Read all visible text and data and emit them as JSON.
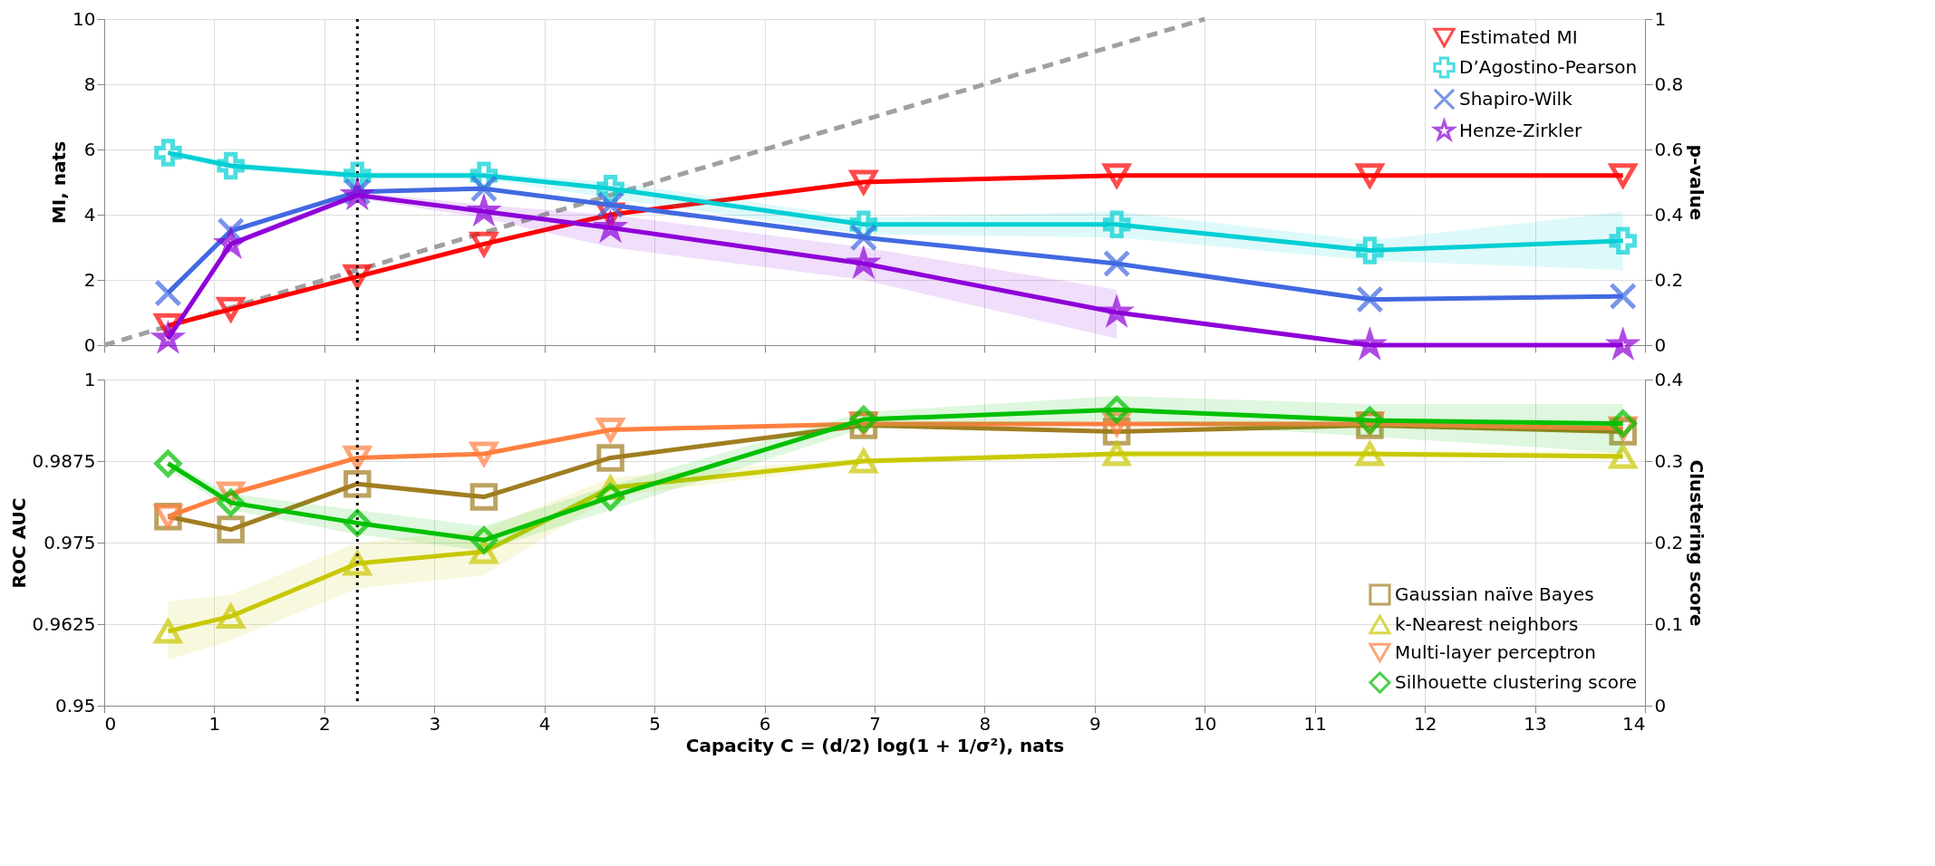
{
  "chart_data": [
    {
      "type": "line",
      "ylabel": "MI, nats",
      "y2label": "p-value",
      "xlim": [
        0,
        14
      ],
      "xticks": [
        0,
        1,
        2,
        3,
        4,
        5,
        6,
        7,
        8,
        9,
        10,
        11,
        12,
        13,
        14
      ],
      "ylim": [
        0,
        10
      ],
      "yticks": [
        0,
        2,
        4,
        6,
        8,
        10
      ],
      "y2lim": [
        0,
        1
      ],
      "y2ticks": [
        0,
        0.2,
        0.4,
        0.6,
        0.8,
        1
      ],
      "grid": true,
      "legend": "top right",
      "tick_labels": "y",
      "x": [
        0.58,
        1.15,
        2.3,
        3.45,
        4.6,
        6.9,
        9.2,
        11.5,
        13.8
      ],
      "series": [
        {
          "type": "line",
          "x": [
            0,
            10
          ],
          "values": [
            0,
            10
          ],
          "color": "#a0a0a0",
          "line_style": "dashed",
          "marker": "none"
        },
        {
          "name": "Estimated MI",
          "color": "#ff0000",
          "marker": "triangle-down",
          "values": [
            0.6,
            1.1,
            2.1,
            3.1,
            4.0,
            5.0,
            5.2,
            5.2,
            5.2
          ]
        },
        {
          "name": "D’Agostino-Pearson",
          "color": "#00cfd3",
          "marker": "cross",
          "axis": "y2",
          "values": [
            0.59,
            0.55,
            0.52,
            0.52,
            0.48,
            0.37,
            0.37,
            0.29,
            0.32
          ],
          "lower": [
            0.58,
            0.54,
            0.51,
            0.51,
            0.45,
            0.34,
            0.33,
            0.26,
            0.23
          ],
          "upper": [
            0.6,
            0.56,
            0.53,
            0.53,
            0.5,
            0.39,
            0.41,
            0.32,
            0.41
          ]
        },
        {
          "name": "Shapiro-Wilk",
          "color": "#4169e1",
          "marker": "x",
          "axis": "y2",
          "values": [
            0.16,
            0.35,
            0.47,
            0.48,
            0.43,
            0.33,
            0.25,
            0.14,
            0.15
          ]
        },
        {
          "name": "Henze-Zirkler",
          "color": "#8e00d8",
          "marker": "star",
          "axis": "y2",
          "values": [
            0.02,
            0.31,
            0.46,
            0.41,
            0.36,
            0.25,
            0.1,
            0.0,
            0.0
          ],
          "lower": [
            0.01,
            0.3,
            0.45,
            0.39,
            0.3,
            0.2,
            0.02,
            null,
            null
          ],
          "upper": [
            0.03,
            0.32,
            0.47,
            0.43,
            0.4,
            0.3,
            0.17,
            null,
            null
          ]
        }
      ],
      "ref_lines": [
        {
          "axis": "x",
          "value": 2.3,
          "color": "#000000",
          "line_style": "dotted"
        }
      ]
    },
    {
      "type": "line",
      "xlabel": "Capacity C = (d/2) log(1 + 1/σ²), nats",
      "ylabel": "ROC AUC",
      "y2label": "Clustering score",
      "xlim": [
        0,
        14
      ],
      "xticks": [
        0,
        1,
        2,
        3,
        4,
        5,
        6,
        7,
        8,
        9,
        10,
        11,
        12,
        13,
        14
      ],
      "ylim": [
        0.95,
        1
      ],
      "yticks": [
        0.95,
        0.9625,
        0.975,
        0.9875,
        1
      ],
      "y2lim": [
        0,
        0.4
      ],
      "y2ticks": [
        0,
        0.1,
        0.2,
        0.3,
        0.4
      ],
      "grid": true,
      "legend": "bottom right",
      "x": [
        0.58,
        1.15,
        2.3,
        3.45,
        4.6,
        6.9,
        9.2,
        11.5,
        13.8
      ],
      "series": [
        {
          "name": "Gaussian naïve Bayes",
          "color": "#a07d20",
          "marker": "square",
          "values": [
            0.979,
            0.977,
            0.984,
            0.982,
            0.988,
            0.993,
            0.992,
            0.993,
            0.992
          ]
        },
        {
          "name": "k-Nearest neighbors",
          "color": "#c8c800",
          "marker": "triangle",
          "values": [
            0.9614,
            0.9637,
            0.9718,
            0.9736,
            0.9834,
            0.9875,
            0.9886,
            0.9886,
            0.9882
          ],
          "lower": [
            0.957,
            0.96,
            0.968,
            0.97,
            0.982,
            0.987,
            0.988,
            0.988,
            0.988
          ],
          "upper": [
            0.966,
            0.967,
            0.975,
            0.977,
            0.985,
            0.988,
            0.989,
            0.989,
            0.989
          ]
        },
        {
          "name": "Multi-layer perceptron",
          "color": "#ff7f40",
          "marker": "triangle-down",
          "values": [
            0.979,
            0.9825,
            0.988,
            0.9886,
            0.9923,
            0.9932,
            0.9932,
            0.9932,
            0.9925
          ]
        },
        {
          "name": "Silhouette clustering score",
          "color": "#00c000",
          "marker": "diamond",
          "axis": "y2",
          "values": [
            0.297,
            0.249,
            0.224,
            0.203,
            0.256,
            0.351,
            0.363,
            0.35,
            0.346
          ],
          "lower": [
            0.29,
            0.24,
            0.21,
            0.19,
            0.24,
            0.34,
            0.35,
            0.33,
            0.31
          ],
          "upper": [
            0.3,
            0.26,
            0.24,
            0.22,
            0.27,
            0.36,
            0.38,
            0.37,
            0.37
          ]
        }
      ],
      "ref_lines": [
        {
          "axis": "x",
          "value": 2.3,
          "color": "#000000",
          "line_style": "dotted"
        }
      ]
    }
  ]
}
